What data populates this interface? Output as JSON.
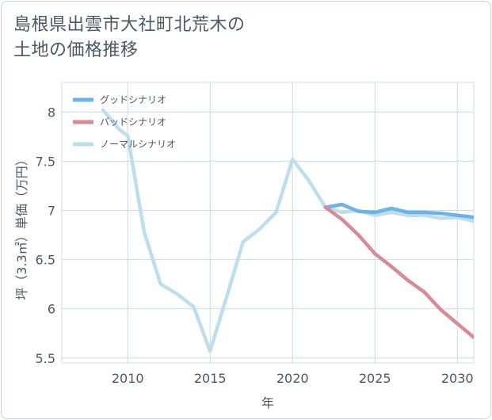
{
  "header": {
    "title_line1": "島根県出雲市大社町北荒木の",
    "title_line2": "土地の価格推移"
  },
  "chart_data": {
    "type": "line",
    "title": "島根県出雲市大社町北荒木の土地の価格推移",
    "xlabel": "年",
    "ylabel": "坪（3.3㎡）単価（万円）",
    "xlim": [
      2006,
      2031
    ],
    "ylim": [
      5.45,
      8.3
    ],
    "xticks": [
      2010,
      2015,
      2020,
      2025,
      2030
    ],
    "yticks": [
      5.5,
      6,
      6.5,
      7,
      7.5,
      8
    ],
    "ytick_labels": [
      "5.5",
      "6",
      "6.5",
      "7",
      "7.5",
      "8"
    ],
    "legend_position": "top-left",
    "series": [
      {
        "name": "グッドシナリオ",
        "color": "#6ab4ea",
        "x": [
          2022,
          2023,
          2024,
          2025,
          2026,
          2027,
          2028,
          2029,
          2030,
          2031
        ],
        "y": [
          7.03,
          7.06,
          6.99,
          6.98,
          7.02,
          6.98,
          6.98,
          6.97,
          6.95,
          6.93
        ]
      },
      {
        "name": "バッドシナリオ",
        "color": "#d98a94",
        "x": [
          2022,
          2023,
          2024,
          2025,
          2026,
          2027,
          2028,
          2029,
          2030,
          2031
        ],
        "y": [
          7.03,
          6.91,
          6.75,
          6.56,
          6.43,
          6.29,
          6.17,
          5.99,
          5.85,
          5.71
        ]
      },
      {
        "name": "ノーマルシナリオ",
        "color": "#bfdeed",
        "x": [
          2008.5,
          2009.5,
          2010,
          2011,
          2012,
          2013,
          2014,
          2015,
          2016,
          2017,
          2018,
          2019,
          2020,
          2021,
          2022,
          2023,
          2024,
          2025,
          2026,
          2027,
          2028,
          2029,
          2030,
          2031
        ],
        "y": [
          8.02,
          7.82,
          7.76,
          6.78,
          6.25,
          6.15,
          6.02,
          5.57,
          6.12,
          6.68,
          6.81,
          6.98,
          7.52,
          7.3,
          7.03,
          6.98,
          7.0,
          6.95,
          6.98,
          6.95,
          6.95,
          6.92,
          6.93,
          6.89
        ]
      }
    ]
  }
}
